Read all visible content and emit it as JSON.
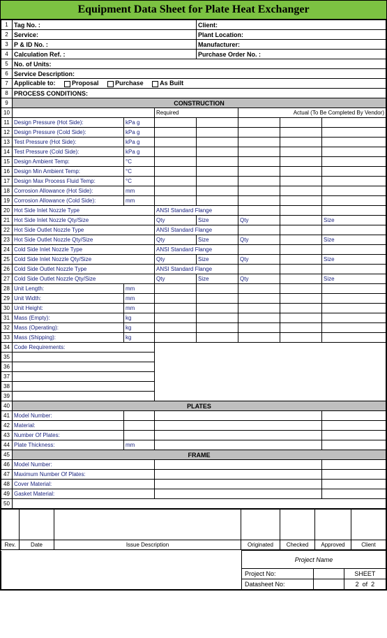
{
  "title": "Equipment Data Sheet for Plate Heat Exchanger",
  "header_rows": [
    {
      "n": "1",
      "left": "Tag No. :",
      "right": "Client:"
    },
    {
      "n": "2",
      "left": "Service:",
      "right": "Plant Location:"
    },
    {
      "n": "3",
      "left": "P & ID No. :",
      "right": "Manufacturer:"
    },
    {
      "n": "4",
      "left": "Calculation Ref. :",
      "right": "Purchase Order No. :"
    }
  ],
  "row5": {
    "n": "5",
    "label": "No. of Units:"
  },
  "row6": {
    "n": "6",
    "label": "Service Description:"
  },
  "row7": {
    "n": "7",
    "label": "Applicable to:",
    "opt1": "Proposal",
    "opt2": "Purchase",
    "opt3": "As Built"
  },
  "row8": {
    "n": "8",
    "label": "PROCESS CONDITIONS:"
  },
  "construction": {
    "n": "9",
    "title": "CONSTRUCTION"
  },
  "col_headers": {
    "n": "10",
    "required": "Required",
    "actual": "Actual (To Be Completed By Vendor)"
  },
  "spec_rows": [
    {
      "n": "11",
      "label": "Design Pressure (Hot Side):",
      "unit": "kPa g"
    },
    {
      "n": "12",
      "label": "Design Pressure (Cold Side):",
      "unit": "kPa g"
    },
    {
      "n": "13",
      "label": "Test Pressure (Hot Side):",
      "unit": "kPa g"
    },
    {
      "n": "14",
      "label": "Test Pressure (Cold Side):",
      "unit": "kPa g"
    },
    {
      "n": "15",
      "label": "Design Ambient Temp:",
      "unit": "°C"
    },
    {
      "n": "16",
      "label": "Design Min Ambient Temp:",
      "unit": "°C"
    },
    {
      "n": "17",
      "label": "Design Max Process Fluid Temp:",
      "unit": "°C"
    },
    {
      "n": "18",
      "label": "Corrosion Allowance (Hot Side):",
      "unit": "mm"
    },
    {
      "n": "19",
      "label": "Corrosion Allowance (Cold Side):",
      "unit": "mm"
    }
  ],
  "nozzle_rows": [
    {
      "n": "20",
      "label": "Hot Side Inlet Nozzle Type",
      "val": "ANSI Standard Flange",
      "type": "type"
    },
    {
      "n": "21",
      "label": "Hot Side Inlet Nozzle Qty/Size",
      "type": "qtysize"
    },
    {
      "n": "22",
      "label": "Hot Side Outlet Nozzle Type",
      "val": "ANSI Standard Flange",
      "type": "type"
    },
    {
      "n": "23",
      "label": "Hot Side Outlet Nozzle Qty/Size",
      "type": "qtysize"
    },
    {
      "n": "24",
      "label": "Cold Side Inlet Nozzle Type",
      "val": "ANSI Standard Flange",
      "type": "type"
    },
    {
      "n": "25",
      "label": "Cold Side Inlet Nozzle Qty/Size",
      "type": "qtysize"
    },
    {
      "n": "26",
      "label": "Cold Side Outlet Nozzle Type",
      "val": "ANSI Standard Flange",
      "type": "type"
    },
    {
      "n": "27",
      "label": "Cold Side Outlet Nozzle Qty/Size",
      "type": "qtysize"
    }
  ],
  "qty": "Qty",
  "size": "Size",
  "dim_rows": [
    {
      "n": "28",
      "label": "Unit Length:",
      "unit": "mm"
    },
    {
      "n": "29",
      "label": "Unit Width:",
      "unit": "mm"
    },
    {
      "n": "30",
      "label": "Unit Height:",
      "unit": "mm"
    },
    {
      "n": "31",
      "label": "Mass (Empty):",
      "unit": "kg"
    },
    {
      "n": "32",
      "label": "Mass (Operating):",
      "unit": "kg"
    },
    {
      "n": "33",
      "label": "Mass (Shipping):",
      "unit": "kg"
    }
  ],
  "code_req": {
    "n": "34",
    "label": "Code Requirements:"
  },
  "blank_rows": [
    "35",
    "36",
    "37",
    "38",
    "39"
  ],
  "plates": {
    "n": "40",
    "title": "PLATES"
  },
  "plates_rows": [
    {
      "n": "41",
      "label": "Model Number:",
      "unit": ""
    },
    {
      "n": "42",
      "label": "Material:",
      "unit": ""
    },
    {
      "n": "43",
      "label": "Number Of Plates:",
      "unit": ""
    },
    {
      "n": "44",
      "label": "Plate Thickness:",
      "unit": "mm"
    }
  ],
  "frame": {
    "n": "45",
    "title": "FRAME"
  },
  "frame_rows": [
    {
      "n": "46",
      "label": "Model Number:"
    },
    {
      "n": "47",
      "label": "Maximum Number Of Plates:"
    },
    {
      "n": "48",
      "label": "Cover Material:"
    },
    {
      "n": "49",
      "label": "Gasket Material:"
    }
  ],
  "row50": "50",
  "rev_headers": {
    "rev": "Rev.",
    "date": "Date",
    "desc": "Issue Description",
    "orig": "Originated",
    "check": "Checked",
    "appr": "Approved",
    "client": "Client"
  },
  "footer": {
    "project_name": "Project Name",
    "project_no": "Project No:",
    "datasheet_no": "Datasheet No:",
    "sheet": "SHEET",
    "current": "2",
    "of": "of",
    "total": "2"
  }
}
